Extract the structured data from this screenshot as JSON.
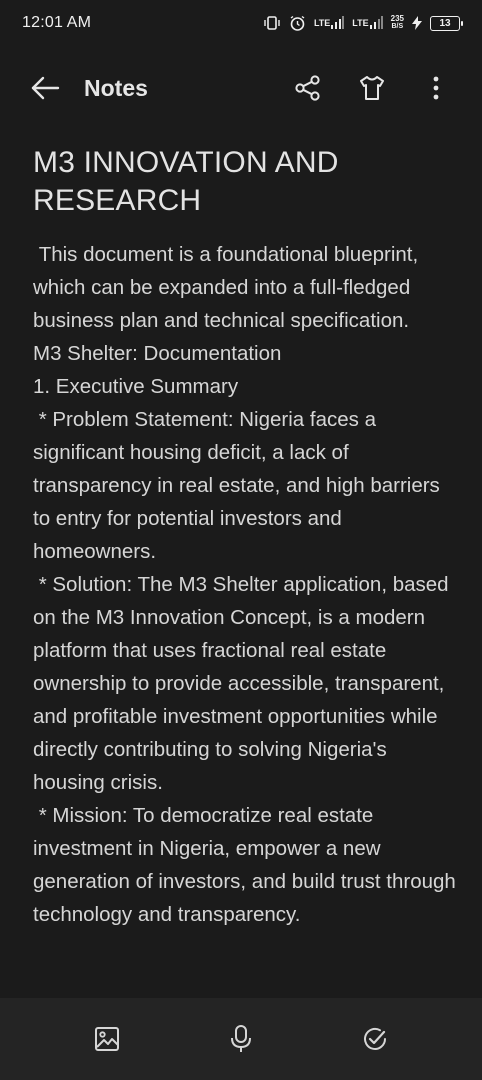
{
  "status_bar": {
    "time": "12:01 AM",
    "lte1": "LTE",
    "lte2": "LTE",
    "speed_value": "235",
    "speed_unit": "B/S",
    "battery": "13"
  },
  "appbar": {
    "title": "Notes",
    "icons": [
      "back-arrow-icon",
      "share-icon",
      "shirt-icon",
      "more-vertical-icon"
    ]
  },
  "note": {
    "title": "M3 INNOVATION AND RESEARCH",
    "body": " This document is a foundational blueprint, which can be expanded into a full-fledged business plan and technical specification.\nM3 Shelter: Documentation\n1. Executive Summary\n * Problem Statement: Nigeria faces a significant housing deficit, a lack of transparency in real estate, and high barriers to entry for potential investors and homeowners.\n * Solution: The M3 Shelter application, based on the M3 Innovation Concept, is a modern platform that uses fractional real estate ownership to provide accessible, transparent, and profitable investment opportunities while directly contributing to solving Nigeria's housing crisis.\n * Mission: To democratize real estate investment in Nigeria, empower a new generation of investors, and build trust through technology and transparency."
  },
  "bottom_bar": {
    "icons": [
      "image-icon",
      "microphone-icon",
      "check-circle-icon"
    ]
  },
  "colors": {
    "background": "#1b1b1b",
    "bottom_bar": "#242424",
    "text": "#d6d6d6"
  }
}
